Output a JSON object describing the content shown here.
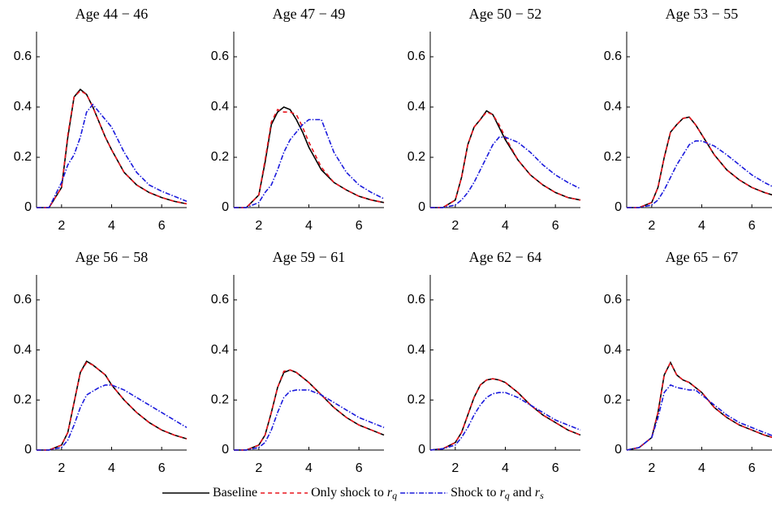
{
  "chart_data": [
    {
      "type": "line",
      "title": "Age 44 − 46",
      "xlim": [
        1,
        7
      ],
      "ylim": [
        0,
        0.7
      ],
      "xticks": [
        2,
        4,
        6
      ],
      "yticks": [
        0,
        0.2,
        0.4,
        0.6
      ],
      "x": [
        1,
        1.5,
        2,
        2.25,
        2.5,
        2.75,
        3,
        3.25,
        3.5,
        3.75,
        4,
        4.5,
        5,
        5.5,
        6,
        6.5,
        7
      ],
      "series": [
        {
          "name": "Baseline",
          "color": "#000000",
          "style": "solid",
          "values": [
            0,
            0,
            0.08,
            0.28,
            0.44,
            0.47,
            0.45,
            0.4,
            0.34,
            0.28,
            0.23,
            0.14,
            0.09,
            0.06,
            0.04,
            0.025,
            0.015
          ]
        },
        {
          "name": "Only shock to r_q",
          "color": "#e8141c",
          "style": "dashed",
          "values": [
            0,
            0,
            0.08,
            0.29,
            0.44,
            0.465,
            0.45,
            0.4,
            0.34,
            0.28,
            0.23,
            0.14,
            0.09,
            0.06,
            0.04,
            0.025,
            0.015
          ]
        },
        {
          "name": "Shock to r_q and r_s",
          "color": "#1a1adc",
          "style": "dashdot",
          "values": [
            0,
            0,
            0.1,
            0.17,
            0.21,
            0.28,
            0.38,
            0.41,
            0.38,
            0.35,
            0.32,
            0.22,
            0.14,
            0.09,
            0.065,
            0.045,
            0.025
          ]
        }
      ]
    },
    {
      "type": "line",
      "title": "Age 47 − 49",
      "xlim": [
        1,
        7
      ],
      "ylim": [
        0,
        0.7
      ],
      "xticks": [
        2,
        4,
        6
      ],
      "yticks": [
        0,
        0.2,
        0.4,
        0.6
      ],
      "x": [
        1,
        1.5,
        2,
        2.25,
        2.5,
        2.75,
        3,
        3.25,
        3.5,
        3.75,
        4,
        4.5,
        5,
        5.5,
        6,
        6.5,
        7
      ],
      "series": [
        {
          "name": "Baseline",
          "color": "#000000",
          "style": "solid",
          "values": [
            0,
            0,
            0.05,
            0.18,
            0.33,
            0.38,
            0.4,
            0.39,
            0.35,
            0.3,
            0.24,
            0.15,
            0.1,
            0.07,
            0.045,
            0.03,
            0.02
          ]
        },
        {
          "name": "Only shock to r_q",
          "color": "#e8141c",
          "style": "dashed",
          "values": [
            0,
            0,
            0.05,
            0.19,
            0.34,
            0.39,
            0.38,
            0.38,
            0.37,
            0.32,
            0.26,
            0.16,
            0.1,
            0.07,
            0.045,
            0.03,
            0.02
          ]
        },
        {
          "name": "Shock to r_q and r_s",
          "color": "#1a1adc",
          "style": "dashdot",
          "values": [
            0,
            0,
            0.02,
            0.06,
            0.09,
            0.15,
            0.22,
            0.27,
            0.3,
            0.33,
            0.35,
            0.35,
            0.22,
            0.14,
            0.09,
            0.06,
            0.035
          ]
        }
      ]
    },
    {
      "type": "line",
      "title": "Age 50 − 52",
      "xlim": [
        1,
        7
      ],
      "ylim": [
        0,
        0.7
      ],
      "xticks": [
        2,
        4,
        6
      ],
      "yticks": [
        0,
        0.2,
        0.4,
        0.6
      ],
      "x": [
        1,
        1.5,
        2,
        2.25,
        2.5,
        2.75,
        3,
        3.25,
        3.5,
        3.75,
        4,
        4.5,
        5,
        5.5,
        6,
        6.5,
        7
      ],
      "series": [
        {
          "name": "Baseline",
          "color": "#000000",
          "style": "solid",
          "values": [
            0,
            0,
            0.03,
            0.12,
            0.25,
            0.32,
            0.35,
            0.385,
            0.37,
            0.32,
            0.27,
            0.19,
            0.13,
            0.09,
            0.06,
            0.04,
            0.03
          ]
        },
        {
          "name": "Only shock to r_q",
          "color": "#e8141c",
          "style": "dashed",
          "values": [
            0,
            0,
            0.03,
            0.12,
            0.25,
            0.32,
            0.35,
            0.38,
            0.37,
            0.33,
            0.28,
            0.19,
            0.13,
            0.09,
            0.06,
            0.04,
            0.03
          ]
        },
        {
          "name": "Shock to r_q and r_s",
          "color": "#1a1adc",
          "style": "dashdot",
          "values": [
            0,
            0,
            0.01,
            0.03,
            0.06,
            0.1,
            0.15,
            0.2,
            0.25,
            0.28,
            0.28,
            0.26,
            0.22,
            0.17,
            0.13,
            0.1,
            0.075
          ]
        }
      ]
    },
    {
      "type": "line",
      "title": "Age 53 − 55",
      "xlim": [
        1,
        7
      ],
      "ylim": [
        0,
        0.7
      ],
      "xticks": [
        2,
        4,
        6
      ],
      "yticks": [
        0,
        0.2,
        0.4,
        0.6
      ],
      "x": [
        1,
        1.5,
        2,
        2.25,
        2.5,
        2.75,
        3,
        3.25,
        3.5,
        3.75,
        4,
        4.5,
        5,
        5.5,
        6,
        6.5,
        7
      ],
      "series": [
        {
          "name": "Baseline",
          "color": "#000000",
          "style": "solid",
          "values": [
            0,
            0,
            0.02,
            0.08,
            0.2,
            0.3,
            0.33,
            0.355,
            0.36,
            0.33,
            0.29,
            0.21,
            0.15,
            0.11,
            0.08,
            0.06,
            0.045
          ]
        },
        {
          "name": "Only shock to r_q",
          "color": "#e8141c",
          "style": "dashed",
          "values": [
            0,
            0,
            0.02,
            0.08,
            0.2,
            0.3,
            0.33,
            0.355,
            0.36,
            0.33,
            0.29,
            0.21,
            0.15,
            0.11,
            0.08,
            0.06,
            0.045
          ]
        },
        {
          "name": "Shock to r_q and r_s",
          "color": "#1a1adc",
          "style": "dashdot",
          "values": [
            0,
            0,
            0.01,
            0.03,
            0.07,
            0.12,
            0.17,
            0.21,
            0.25,
            0.265,
            0.265,
            0.245,
            0.21,
            0.17,
            0.13,
            0.1,
            0.075
          ]
        }
      ]
    },
    {
      "type": "line",
      "title": "Age 56 − 58",
      "xlim": [
        1,
        7
      ],
      "ylim": [
        0,
        0.7
      ],
      "xticks": [
        2,
        4,
        6
      ],
      "yticks": [
        0,
        0.2,
        0.4,
        0.6
      ],
      "x": [
        1,
        1.5,
        2,
        2.25,
        2.5,
        2.75,
        3,
        3.25,
        3.5,
        3.75,
        4,
        4.5,
        5,
        5.5,
        6,
        6.5,
        7
      ],
      "series": [
        {
          "name": "Baseline",
          "color": "#000000",
          "style": "solid",
          "values": [
            0,
            0,
            0.02,
            0.07,
            0.19,
            0.31,
            0.355,
            0.34,
            0.32,
            0.3,
            0.26,
            0.2,
            0.15,
            0.11,
            0.08,
            0.06,
            0.045
          ]
        },
        {
          "name": "Only shock to r_q",
          "color": "#e8141c",
          "style": "dashed",
          "values": [
            0,
            0,
            0.02,
            0.07,
            0.19,
            0.31,
            0.35,
            0.34,
            0.32,
            0.3,
            0.26,
            0.2,
            0.15,
            0.11,
            0.08,
            0.06,
            0.045
          ]
        },
        {
          "name": "Shock to r_q and r_s",
          "color": "#1a1adc",
          "style": "dashdot",
          "values": [
            0,
            0,
            0.01,
            0.04,
            0.1,
            0.17,
            0.22,
            0.235,
            0.25,
            0.26,
            0.26,
            0.24,
            0.21,
            0.18,
            0.15,
            0.12,
            0.09
          ]
        }
      ]
    },
    {
      "type": "line",
      "title": "Age 59 − 61",
      "xlim": [
        1,
        7
      ],
      "ylim": [
        0,
        0.7
      ],
      "xticks": [
        2,
        4,
        6
      ],
      "yticks": [
        0,
        0.2,
        0.4,
        0.6
      ],
      "x": [
        1,
        1.5,
        2,
        2.25,
        2.5,
        2.75,
        3,
        3.25,
        3.5,
        3.75,
        4,
        4.5,
        5,
        5.5,
        6,
        6.5,
        7
      ],
      "series": [
        {
          "name": "Baseline",
          "color": "#000000",
          "style": "solid",
          "values": [
            0,
            0,
            0.02,
            0.06,
            0.15,
            0.25,
            0.31,
            0.32,
            0.31,
            0.29,
            0.27,
            0.22,
            0.17,
            0.13,
            0.1,
            0.08,
            0.06
          ]
        },
        {
          "name": "Only shock to r_q",
          "color": "#e8141c",
          "style": "dashed",
          "values": [
            0,
            0,
            0.02,
            0.06,
            0.15,
            0.25,
            0.315,
            0.32,
            0.31,
            0.29,
            0.27,
            0.22,
            0.17,
            0.13,
            0.1,
            0.08,
            0.06
          ]
        },
        {
          "name": "Shock to r_q and r_s",
          "color": "#1a1adc",
          "style": "dashdot",
          "values": [
            0,
            0,
            0.01,
            0.03,
            0.08,
            0.15,
            0.21,
            0.235,
            0.24,
            0.24,
            0.24,
            0.22,
            0.19,
            0.16,
            0.13,
            0.11,
            0.09
          ]
        }
      ]
    },
    {
      "type": "line",
      "title": "Age 62 − 64",
      "xlim": [
        1,
        7
      ],
      "ylim": [
        0,
        0.7
      ],
      "xticks": [
        2,
        4,
        6
      ],
      "yticks": [
        0,
        0.2,
        0.4,
        0.6
      ],
      "x": [
        1,
        1.5,
        2,
        2.25,
        2.5,
        2.75,
        3,
        3.25,
        3.5,
        3.75,
        4,
        4.5,
        5,
        5.5,
        6,
        6.5,
        7
      ],
      "series": [
        {
          "name": "Baseline",
          "color": "#000000",
          "style": "solid",
          "values": [
            0,
            0.005,
            0.03,
            0.07,
            0.14,
            0.21,
            0.26,
            0.28,
            0.285,
            0.28,
            0.27,
            0.23,
            0.18,
            0.14,
            0.11,
            0.08,
            0.06
          ]
        },
        {
          "name": "Only shock to r_q",
          "color": "#e8141c",
          "style": "dashed",
          "values": [
            0,
            0.005,
            0.03,
            0.07,
            0.14,
            0.21,
            0.26,
            0.28,
            0.285,
            0.28,
            0.27,
            0.23,
            0.18,
            0.14,
            0.11,
            0.08,
            0.06
          ]
        },
        {
          "name": "Shock to r_q and r_s",
          "color": "#1a1adc",
          "style": "dashdot",
          "values": [
            0,
            0.005,
            0.02,
            0.05,
            0.09,
            0.14,
            0.18,
            0.21,
            0.225,
            0.23,
            0.23,
            0.21,
            0.18,
            0.15,
            0.12,
            0.1,
            0.08
          ]
        }
      ]
    },
    {
      "type": "line",
      "title": "Age 65 − 67",
      "xlim": [
        1,
        7
      ],
      "ylim": [
        0,
        0.7
      ],
      "xticks": [
        2,
        4,
        6
      ],
      "yticks": [
        0,
        0.2,
        0.4,
        0.6
      ],
      "x": [
        1,
        1.5,
        2,
        2.25,
        2.5,
        2.75,
        3,
        3.25,
        3.5,
        3.75,
        4,
        4.5,
        5,
        5.5,
        6,
        6.5,
        7
      ],
      "series": [
        {
          "name": "Baseline",
          "color": "#000000",
          "style": "solid",
          "values": [
            0,
            0.01,
            0.05,
            0.15,
            0.3,
            0.35,
            0.3,
            0.28,
            0.27,
            0.25,
            0.23,
            0.17,
            0.13,
            0.1,
            0.08,
            0.06,
            0.045
          ]
        },
        {
          "name": "Only shock to r_q",
          "color": "#e8141c",
          "style": "dashed",
          "values": [
            0,
            0.01,
            0.05,
            0.15,
            0.3,
            0.35,
            0.3,
            0.28,
            0.27,
            0.25,
            0.23,
            0.17,
            0.13,
            0.1,
            0.08,
            0.06,
            0.045
          ]
        },
        {
          "name": "Shock to r_q and r_s",
          "color": "#1a1adc",
          "style": "dashdot",
          "values": [
            0,
            0.01,
            0.05,
            0.13,
            0.23,
            0.26,
            0.25,
            0.245,
            0.24,
            0.24,
            0.22,
            0.18,
            0.14,
            0.11,
            0.09,
            0.07,
            0.05
          ]
        }
      ]
    }
  ]
}
